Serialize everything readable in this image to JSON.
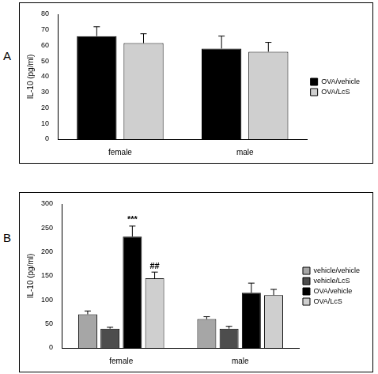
{
  "chart_data": [
    {
      "type": "bar",
      "title": "A",
      "y_label": "IL-10 (pg/ml)",
      "categories": [
        "female",
        "male"
      ],
      "series": [
        {
          "name": "OVA/vehicle",
          "color": "#000000",
          "values": [
            66,
            58
          ],
          "errors": [
            6,
            8
          ]
        },
        {
          "name": "OVA/LcS",
          "color": "#cfcfcf",
          "values": [
            61.5,
            56
          ],
          "errors": [
            6,
            6
          ]
        }
      ],
      "ylim": [
        0,
        80
      ],
      "yticks": [
        0,
        10,
        20,
        30,
        40,
        50,
        60,
        70,
        80
      ],
      "grid": false,
      "legend": "right"
    },
    {
      "type": "bar",
      "title": "B",
      "y_label": "IL-10 (pg/ml)",
      "categories": [
        "female",
        "male"
      ],
      "series": [
        {
          "name": "vehicle/vehicle",
          "color": "#a6a6a6",
          "values": [
            70,
            60
          ],
          "errors": [
            7,
            5
          ]
        },
        {
          "name": "vehicle/LcS",
          "color": "#4d4d4d",
          "values": [
            40,
            40
          ],
          "errors": [
            3,
            5
          ]
        },
        {
          "name": "OVA/vehicle",
          "color": "#000000",
          "values": [
            232,
            115
          ],
          "errors": [
            22,
            20
          ]
        },
        {
          "name": "OVA/LcS",
          "color": "#cfcfcf",
          "values": [
            145,
            110
          ],
          "errors": [
            13,
            12
          ]
        }
      ],
      "ylim": [
        0,
        300
      ],
      "yticks": [
        0,
        50,
        100,
        150,
        200,
        250,
        300
      ],
      "grid": false,
      "legend": "right",
      "annotations": [
        {
          "text": "***",
          "category": "female",
          "series": "OVA/vehicle"
        },
        {
          "text": "##",
          "category": "female",
          "series": "OVA/LcS"
        }
      ]
    }
  ]
}
